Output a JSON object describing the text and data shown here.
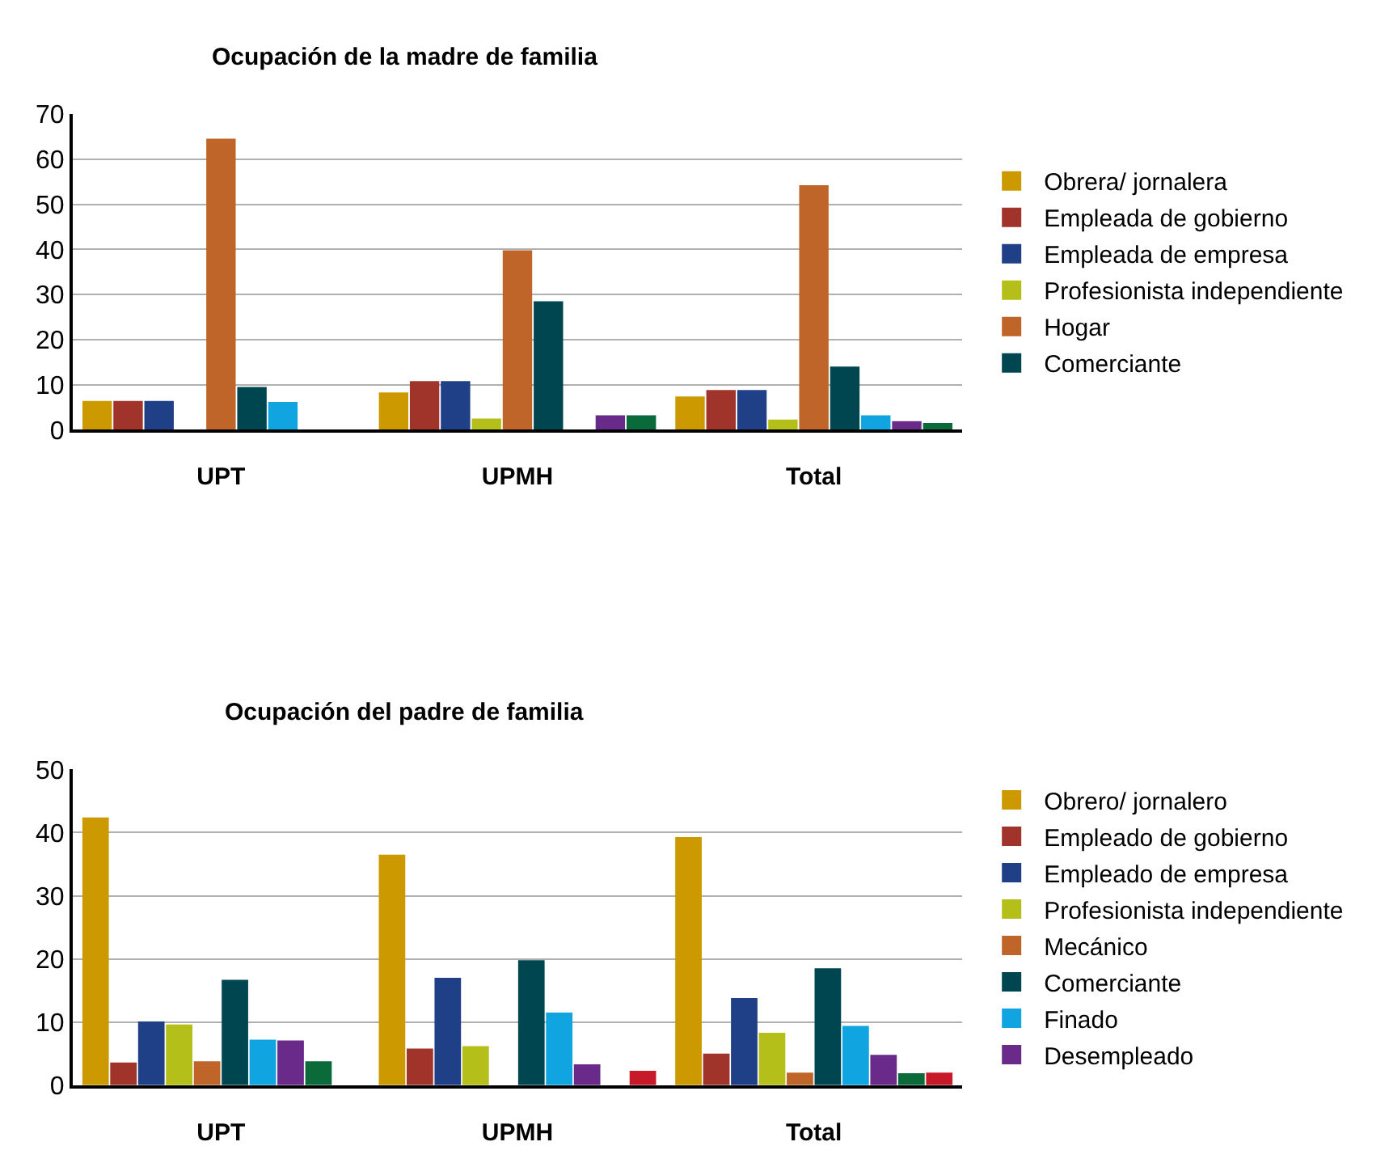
{
  "chart_data": [
    {
      "type": "bar",
      "title": "Ocupación de la madre de familia",
      "categories": [
        "UPT",
        "UPMH",
        "Total"
      ],
      "ylim": [
        0,
        70
      ],
      "yticks": [
        0,
        10,
        20,
        30,
        40,
        50,
        60,
        70
      ],
      "grid": "y",
      "legend": "right",
      "series": [
        {
          "name": "Obrera/ jornalera",
          "color": "#cc9900",
          "values": [
            6.4,
            8.3,
            7.4
          ]
        },
        {
          "name": "Empleada de gobierno",
          "color": "#a0332a",
          "values": [
            6.4,
            10.8,
            8.8
          ]
        },
        {
          "name": "Empleada de empresa",
          "color": "#1f3f86",
          "values": [
            6.4,
            10.8,
            8.8
          ]
        },
        {
          "name": "Profesionista independiente",
          "color": "#b5bf1a",
          "values": [
            null,
            2.5,
            2.3
          ]
        },
        {
          "name": "Hogar",
          "color": "#c0652a",
          "values": [
            64.5,
            39.8,
            54.2
          ]
        },
        {
          "name": "Comerciante",
          "color": "#004650",
          "values": [
            9.5,
            28.5,
            14
          ]
        },
        {
          "color": "#10a5e0",
          "values": [
            6.2,
            null,
            3.2
          ]
        },
        {
          "color": "#6a2a8a",
          "values": [
            null,
            3.2,
            1.9
          ]
        },
        {
          "color": "#0a6a3a",
          "values": [
            null,
            3.2,
            1.5
          ]
        }
      ]
    },
    {
      "type": "bar",
      "title": "Ocupación del padre de familia",
      "categories": [
        "UPT",
        "UPMH",
        "Total"
      ],
      "ylim": [
        0,
        50
      ],
      "yticks": [
        0,
        10,
        20,
        30,
        40,
        50
      ],
      "grid": "y",
      "legend": "right",
      "series": [
        {
          "name": "Obrero/ jornalero",
          "color": "#cc9900",
          "values": [
            42.4,
            36.5,
            39.3
          ]
        },
        {
          "name": "Empleado de gobierno",
          "color": "#a0332a",
          "values": [
            3.6,
            5.8,
            5
          ]
        },
        {
          "name": "Empleado de empresa",
          "color": "#1f3f86",
          "values": [
            10.1,
            17,
            13.8
          ]
        },
        {
          "name": "Profesionista independiente",
          "color": "#b5bf1a",
          "values": [
            9.6,
            6.2,
            8.3
          ]
        },
        {
          "name": "Mecánico",
          "color": "#c0652a",
          "values": [
            3.8,
            null,
            2
          ]
        },
        {
          "name": "Comerciante",
          "color": "#004650",
          "values": [
            16.7,
            19.8,
            18.5
          ]
        },
        {
          "name": "Finado",
          "color": "#10a5e0",
          "values": [
            7.2,
            11.5,
            9.4
          ]
        },
        {
          "name": "Desempleado",
          "color": "#6a2a8a",
          "values": [
            7.1,
            3.3,
            4.8
          ]
        },
        {
          "color": "#0a6a3a",
          "values": [
            3.8,
            null,
            1.9
          ]
        },
        {
          "color": "#c8192b",
          "values": [
            null,
            2.3,
            2
          ]
        }
      ]
    }
  ]
}
